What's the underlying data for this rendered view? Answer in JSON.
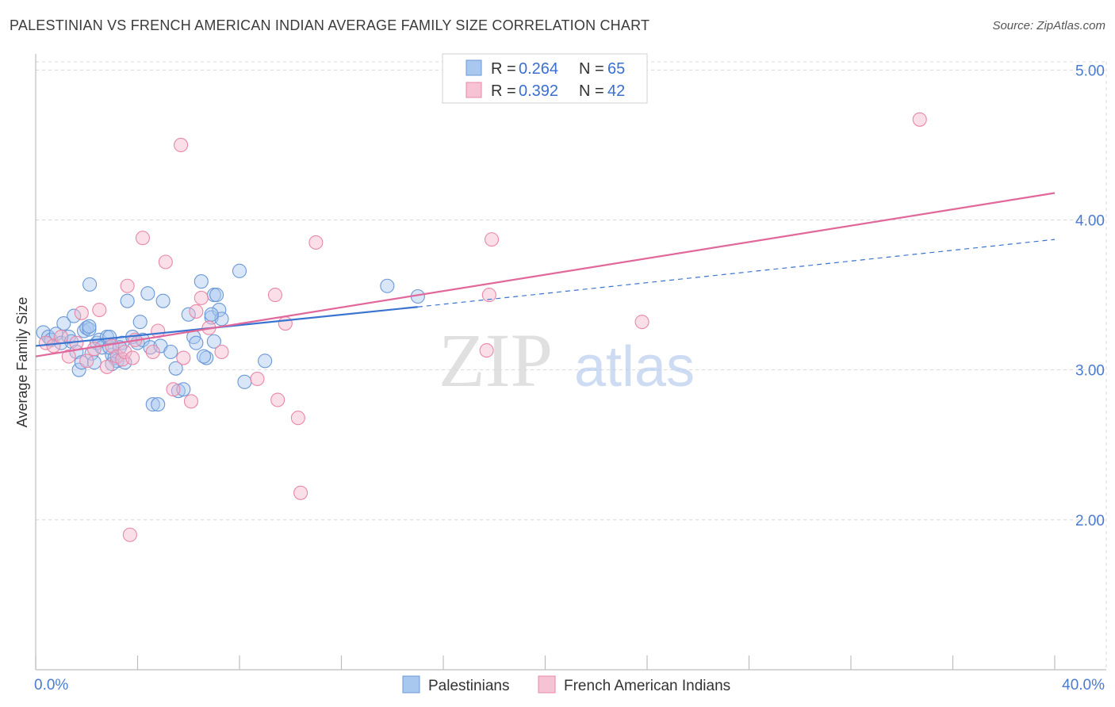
{
  "title": "PALESTINIAN VS FRENCH AMERICAN INDIAN AVERAGE FAMILY SIZE CORRELATION CHART",
  "source": "Source: ZipAtlas.com",
  "watermark": {
    "zip": "ZIP",
    "atlas": "atlas"
  },
  "colors": {
    "blue_fill": "#a8c8f0",
    "blue_stroke": "#6b98d6",
    "blue_line": "#3a74d0",
    "pink_fill": "#f5b8cc",
    "pink_stroke": "#e887a8",
    "pink_line": "#e0689a",
    "grid": "#d8d8d8",
    "tick_text": "#4a7bd0"
  },
  "legend": {
    "rows": [
      {
        "r_label": "R = ",
        "r_value": "0.264",
        "n_label": "N = ",
        "n_value": "65",
        "series": "blue"
      },
      {
        "r_label": "R = ",
        "r_value": "0.392",
        "n_label": "N = ",
        "n_value": "42",
        "series": "pink"
      }
    ]
  },
  "chart_data": {
    "type": "scatter",
    "title": "PALESTINIAN VS FRENCH AMERICAN INDIAN AVERAGE FAMILY SIZE CORRELATION CHART",
    "xlabel": "",
    "ylabel": "Average Family Size",
    "xlim": [
      0,
      40
    ],
    "ylim": [
      1.0,
      5.15
    ],
    "x_tick_labels": [
      "0.0%",
      "40.0%"
    ],
    "y_ticks": [
      2.0,
      3.0,
      4.0,
      5.0
    ],
    "y_tick_labels": [
      "2.00",
      "3.00",
      "4.00",
      "5.00"
    ],
    "grid": true,
    "legend_position": "top-center",
    "bottom_legend": [
      "Palestinians",
      "French American Indians"
    ],
    "series": [
      {
        "name": "Palestinians",
        "color": "blue",
        "trend": {
          "x": [
            0,
            15
          ],
          "y": [
            3.16,
            3.42
          ],
          "dashed_extension_to_x": 40,
          "dashed_end_y": 3.87
        },
        "points": [
          [
            0.3,
            3.25
          ],
          [
            0.5,
            3.22
          ],
          [
            0.6,
            3.2
          ],
          [
            0.8,
            3.24
          ],
          [
            1.0,
            3.18
          ],
          [
            1.1,
            3.31
          ],
          [
            1.3,
            3.22
          ],
          [
            1.4,
            3.19
          ],
          [
            1.5,
            3.36
          ],
          [
            1.6,
            3.12
          ],
          [
            1.7,
            3.0
          ],
          [
            1.8,
            3.05
          ],
          [
            1.9,
            3.26
          ],
          [
            2.0,
            3.28
          ],
          [
            2.1,
            3.27
          ],
          [
            2.2,
            3.11
          ],
          [
            2.3,
            3.05
          ],
          [
            2.4,
            3.18
          ],
          [
            2.5,
            3.2
          ],
          [
            2.6,
            3.15
          ],
          [
            2.1,
            3.29
          ],
          [
            2.8,
            3.22
          ],
          [
            3.0,
            3.1
          ],
          [
            3.1,
            3.08
          ],
          [
            3.2,
            3.06
          ],
          [
            2.9,
            3.15
          ],
          [
            3.4,
            3.18
          ],
          [
            2.12,
            3.57
          ],
          [
            3.0,
            3.04
          ],
          [
            3.3,
            3.15
          ],
          [
            3.5,
            3.05
          ],
          [
            2.9,
            3.22
          ],
          [
            3.8,
            3.22
          ],
          [
            3.6,
            3.46
          ],
          [
            4.0,
            3.18
          ],
          [
            4.1,
            3.32
          ],
          [
            4.2,
            3.2
          ],
          [
            4.4,
            3.51
          ],
          [
            4.5,
            3.15
          ],
          [
            4.6,
            2.77
          ],
          [
            4.8,
            2.77
          ],
          [
            4.9,
            3.16
          ],
          [
            5.0,
            3.46
          ],
          [
            5.3,
            3.12
          ],
          [
            5.5,
            3.01
          ],
          [
            5.6,
            2.86
          ],
          [
            5.8,
            2.87
          ],
          [
            6.0,
            3.37
          ],
          [
            6.2,
            3.22
          ],
          [
            6.3,
            3.18
          ],
          [
            6.5,
            3.59
          ],
          [
            6.7,
            3.08
          ],
          [
            6.9,
            3.35
          ],
          [
            7.0,
            3.5
          ],
          [
            7.1,
            3.5
          ],
          [
            7.2,
            3.4
          ],
          [
            7.3,
            3.34
          ],
          [
            6.9,
            3.37
          ],
          [
            7.0,
            3.19
          ],
          [
            6.6,
            3.09
          ],
          [
            8.0,
            3.66
          ],
          [
            8.2,
            2.92
          ],
          [
            9.0,
            3.06
          ],
          [
            13.8,
            3.56
          ],
          [
            15.0,
            3.49
          ]
        ]
      },
      {
        "name": "French American Indians",
        "color": "pink",
        "trend": {
          "x": [
            0,
            40
          ],
          "y": [
            3.09,
            4.18
          ]
        },
        "points": [
          [
            0.4,
            3.18
          ],
          [
            0.7,
            3.16
          ],
          [
            1.0,
            3.22
          ],
          [
            1.3,
            3.09
          ],
          [
            1.6,
            3.18
          ],
          [
            1.8,
            3.38
          ],
          [
            2.0,
            3.06
          ],
          [
            2.3,
            3.14
          ],
          [
            2.5,
            3.4
          ],
          [
            2.8,
            3.02
          ],
          [
            3.0,
            3.16
          ],
          [
            3.2,
            3.09
          ],
          [
            3.4,
            3.07
          ],
          [
            3.5,
            3.12
          ],
          [
            3.6,
            3.56
          ],
          [
            3.8,
            3.08
          ],
          [
            3.9,
            3.2
          ],
          [
            4.2,
            3.88
          ],
          [
            4.6,
            3.12
          ],
          [
            4.8,
            3.26
          ],
          [
            5.1,
            3.72
          ],
          [
            5.4,
            2.87
          ],
          [
            5.7,
            4.5
          ],
          [
            5.8,
            3.08
          ],
          [
            6.1,
            2.79
          ],
          [
            6.3,
            3.39
          ],
          [
            6.5,
            3.48
          ],
          [
            6.8,
            3.28
          ],
          [
            7.3,
            3.12
          ],
          [
            8.7,
            2.94
          ],
          [
            9.4,
            3.5
          ],
          [
            9.8,
            3.31
          ],
          [
            9.5,
            2.8
          ],
          [
            10.3,
            2.68
          ],
          [
            10.4,
            2.18
          ],
          [
            11.0,
            3.85
          ],
          [
            3.7,
            1.9
          ],
          [
            17.7,
            3.13
          ],
          [
            17.8,
            3.5
          ],
          [
            17.9,
            3.87
          ],
          [
            23.8,
            3.32
          ],
          [
            34.7,
            4.67
          ]
        ]
      }
    ]
  }
}
